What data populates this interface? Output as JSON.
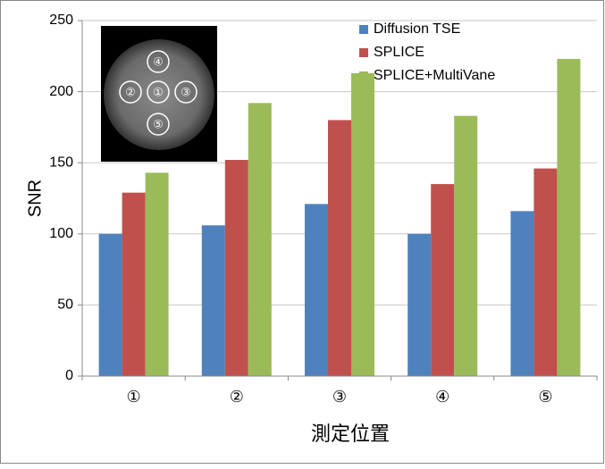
{
  "chart_data": {
    "type": "bar",
    "xlabel": "測定位置",
    "ylabel": "SNR",
    "categories": [
      "①",
      "②",
      "③",
      "④",
      "⑤"
    ],
    "series": [
      {
        "name": "Diffusion TSE",
        "color": "#4f81bd",
        "values": [
          100,
          106,
          121,
          100,
          116
        ]
      },
      {
        "name": "SPLICE",
        "color": "#c0504d",
        "values": [
          129,
          152,
          180,
          135,
          146
        ]
      },
      {
        "name": "SPLICE+MultiVane",
        "color": "#9bbb59",
        "values": [
          143,
          192,
          213,
          183,
          223
        ]
      }
    ],
    "ylim": [
      0,
      250
    ],
    "yticks": [
      0,
      50,
      100,
      150,
      200,
      250
    ],
    "grid": true,
    "legend": "top-right",
    "inset": {
      "labels": [
        "④",
        "②",
        "①",
        "③",
        "⑤"
      ]
    }
  }
}
